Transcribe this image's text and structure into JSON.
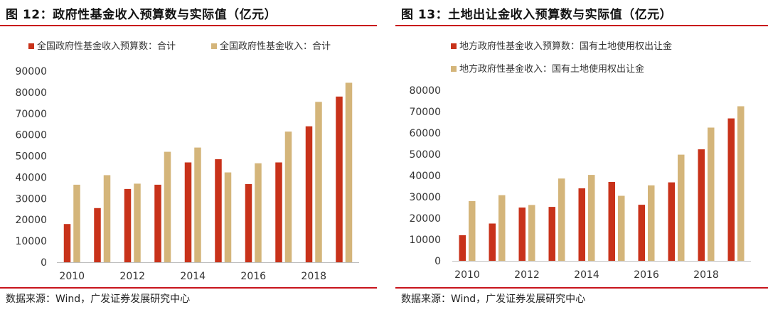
{
  "colors": {
    "budget": "#C8321A",
    "actual": "#D4B57A",
    "accent": "#C8141C"
  },
  "source": "数据来源：Wind，广发证券发展研究中心",
  "chart_data": [
    {
      "type": "bar",
      "title": "图 12：政府性基金收入预算数与实际值（亿元）",
      "categories": [
        "2010",
        "2011",
        "2012",
        "2013",
        "2014",
        "2015",
        "2016",
        "2017",
        "2018",
        "2019"
      ],
      "x_tick_labels": [
        "2010",
        "2012",
        "2014",
        "2016",
        "2018"
      ],
      "yticks": [
        0,
        10000,
        20000,
        30000,
        40000,
        50000,
        60000,
        70000,
        80000,
        90000
      ],
      "ylim": [
        0,
        90000
      ],
      "legend_position": "top",
      "series": [
        {
          "name": "全国政府性基金收入预算数：合计",
          "values": [
            18000,
            25500,
            34500,
            36500,
            47000,
            48500,
            36800,
            47000,
            64000,
            78000
          ]
        },
        {
          "name": "全国政府性基金收入：合计",
          "values": [
            36500,
            41000,
            37000,
            52000,
            54000,
            42300,
            46600,
            61500,
            75500,
            84500
          ]
        }
      ]
    },
    {
      "type": "bar",
      "title": "图 13：土地出让金收入预算数与实际值（亿元）",
      "categories": [
        "2010",
        "2011",
        "2012",
        "2013",
        "2014",
        "2015",
        "2016",
        "2017",
        "2018",
        "2019"
      ],
      "x_tick_labels": [
        "2010",
        "2012",
        "2014",
        "2016",
        "2018"
      ],
      "yticks": [
        0,
        10000,
        20000,
        30000,
        40000,
        50000,
        60000,
        70000,
        80000
      ],
      "ylim": [
        0,
        80000
      ],
      "legend_position": "top",
      "series": [
        {
          "name": "地方政府性基金收入预算数：国有土地使用权出让金",
          "values": [
            12000,
            17500,
            25000,
            25300,
            34000,
            37000,
            26300,
            36800,
            52300,
            66800
          ]
        },
        {
          "name": "地方政府性基金收入：国有土地使用权出让金",
          "values": [
            28000,
            30800,
            26200,
            38600,
            40300,
            30500,
            35400,
            49800,
            62500,
            72500
          ]
        }
      ]
    }
  ]
}
